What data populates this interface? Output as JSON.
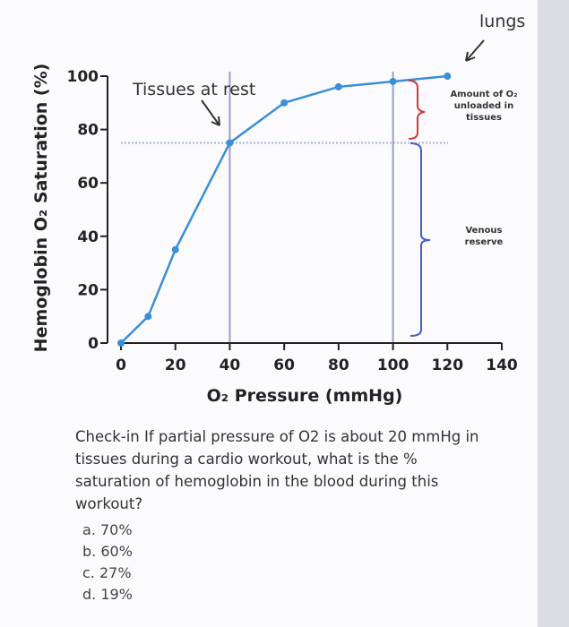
{
  "chart_data": {
    "type": "line",
    "x_label": "O₂ Pressure (mmHg)",
    "y_label": "Hemoglobin O₂ Saturation (%)",
    "x": [
      0,
      10,
      20,
      40,
      60,
      80,
      100,
      120
    ],
    "series": [
      {
        "color": "#3a8fd6",
        "values": [
          0,
          10,
          35,
          75,
          90,
          96,
          98,
          100
        ]
      }
    ],
    "xlim": [
      0,
      140
    ],
    "ylim": [
      0,
      100
    ],
    "xticks": [
      0,
      20,
      40,
      60,
      80,
      100,
      120,
      140
    ],
    "yticks": [
      0,
      20,
      40,
      60,
      80,
      100
    ],
    "vlines": [
      40,
      100
    ],
    "hlines": [
      75
    ],
    "annotations": [
      "lungs",
      "Tissues at rest",
      "Amount of O₂",
      "unloaded in",
      "tissues",
      "Venous",
      "reserve"
    ]
  },
  "question": "Check-in If partial pressure of O2 is about 20 mmHg in tissues during a cardio workout, what is the % saturation of hemoglobin in the blood during this workout?",
  "options": [
    "a. 70%",
    "b. 60%",
    "c. 27%",
    "d. 19%"
  ]
}
